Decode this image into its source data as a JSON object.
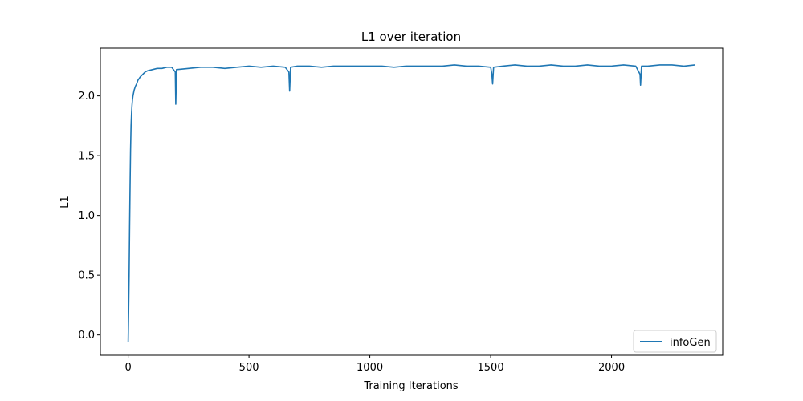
{
  "chart_data": {
    "type": "line",
    "title": "L1 over iteration",
    "xlabel": "Training Iterations",
    "ylabel": "L1",
    "xlim": [
      -115,
      2460
    ],
    "ylim": [
      -0.17,
      2.4
    ],
    "xticks": [
      0,
      500,
      1000,
      1500,
      2000
    ],
    "yticks": [
      0.0,
      0.5,
      1.0,
      1.5,
      2.0
    ],
    "xtick_labels": [
      "0",
      "500",
      "1000",
      "1500",
      "2000"
    ],
    "ytick_labels": [
      "0.0",
      "0.5",
      "1.0",
      "1.5",
      "2.0"
    ],
    "legend_position": "lower-right",
    "grid": false,
    "series": [
      {
        "name": "infoGen",
        "color": "#1f77b4",
        "x": [
          0,
          2,
          4,
          6,
          8,
          10,
          12,
          14,
          16,
          18,
          20,
          25,
          30,
          35,
          40,
          50,
          60,
          70,
          80,
          100,
          120,
          140,
          160,
          180,
          195,
          197,
          200,
          250,
          300,
          350,
          400,
          450,
          500,
          550,
          600,
          650,
          665,
          668,
          672,
          700,
          750,
          800,
          850,
          900,
          950,
          1000,
          1050,
          1100,
          1150,
          1200,
          1250,
          1300,
          1350,
          1400,
          1450,
          1500,
          1505,
          1508,
          1512,
          1550,
          1600,
          1650,
          1700,
          1750,
          1800,
          1850,
          1900,
          1950,
          2000,
          2050,
          2100,
          2118,
          2120,
          2124,
          2150,
          2200,
          2250,
          2300,
          2345
        ],
        "y": [
          -0.06,
          0.2,
          0.5,
          0.9,
          1.25,
          1.55,
          1.75,
          1.85,
          1.92,
          1.97,
          2.0,
          2.05,
          2.08,
          2.1,
          2.13,
          2.16,
          2.18,
          2.2,
          2.21,
          2.22,
          2.23,
          2.23,
          2.24,
          2.24,
          2.2,
          1.93,
          2.22,
          2.23,
          2.24,
          2.24,
          2.23,
          2.24,
          2.25,
          2.24,
          2.25,
          2.24,
          2.2,
          2.04,
          2.24,
          2.25,
          2.25,
          2.24,
          2.25,
          2.25,
          2.25,
          2.25,
          2.25,
          2.24,
          2.25,
          2.25,
          2.25,
          2.25,
          2.26,
          2.25,
          2.25,
          2.24,
          2.18,
          2.1,
          2.24,
          2.25,
          2.26,
          2.25,
          2.25,
          2.26,
          2.25,
          2.25,
          2.26,
          2.25,
          2.25,
          2.26,
          2.25,
          2.18,
          2.09,
          2.25,
          2.25,
          2.26,
          2.26,
          2.25,
          2.26
        ]
      }
    ]
  }
}
